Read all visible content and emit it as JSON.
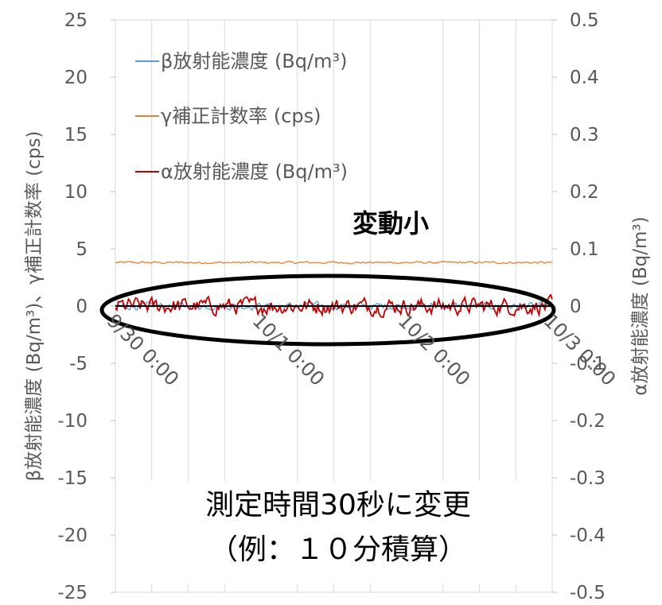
{
  "chart_data": {
    "type": "line",
    "ylabel": "β放射能濃度 (Bq/m³)、γ補正計数率 (cps)",
    "y2label": "α放射能濃度 (Bq/m³)",
    "ylim": [
      -25,
      25
    ],
    "y2lim": [
      -0.5,
      0.5
    ],
    "yticks": [
      "25",
      "20",
      "15",
      "10",
      "5",
      "0",
      "-5",
      "-10",
      "-15",
      "-20",
      "-25"
    ],
    "y2ticks": [
      "0.5",
      "0.4",
      "0.3",
      "0.2",
      "0.1",
      "0",
      "-0.1",
      "-0.2",
      "-0.3",
      "-0.4",
      "-0.5"
    ],
    "x_ticks": [
      "9/30 0:00",
      "10/1 0:00",
      "10/2 0:00",
      "10/3 0:00"
    ],
    "grid": "vertical",
    "legend_position": "top-left",
    "series": [
      {
        "name": "β放射能濃度 (Bq/m³)",
        "axis": "left",
        "color": "#5B9BD5",
        "level": 0.0,
        "noise": 0.25
      },
      {
        "name": "γ補正計数率 (cps)",
        "axis": "left",
        "color": "#ED7D31",
        "level": 3.8,
        "noise": 0.08
      },
      {
        "name": "α放射能濃度 (Bq/m³)",
        "axis": "right",
        "color": "#C00000",
        "level": 0.0,
        "noise": 0.012
      }
    ],
    "annotations": {
      "small_change": "変動小",
      "note_line1": "測定時間30秒に変更",
      "note_line2": "（例：１０分積算）"
    },
    "highlight": "ellipse around 0 level"
  }
}
